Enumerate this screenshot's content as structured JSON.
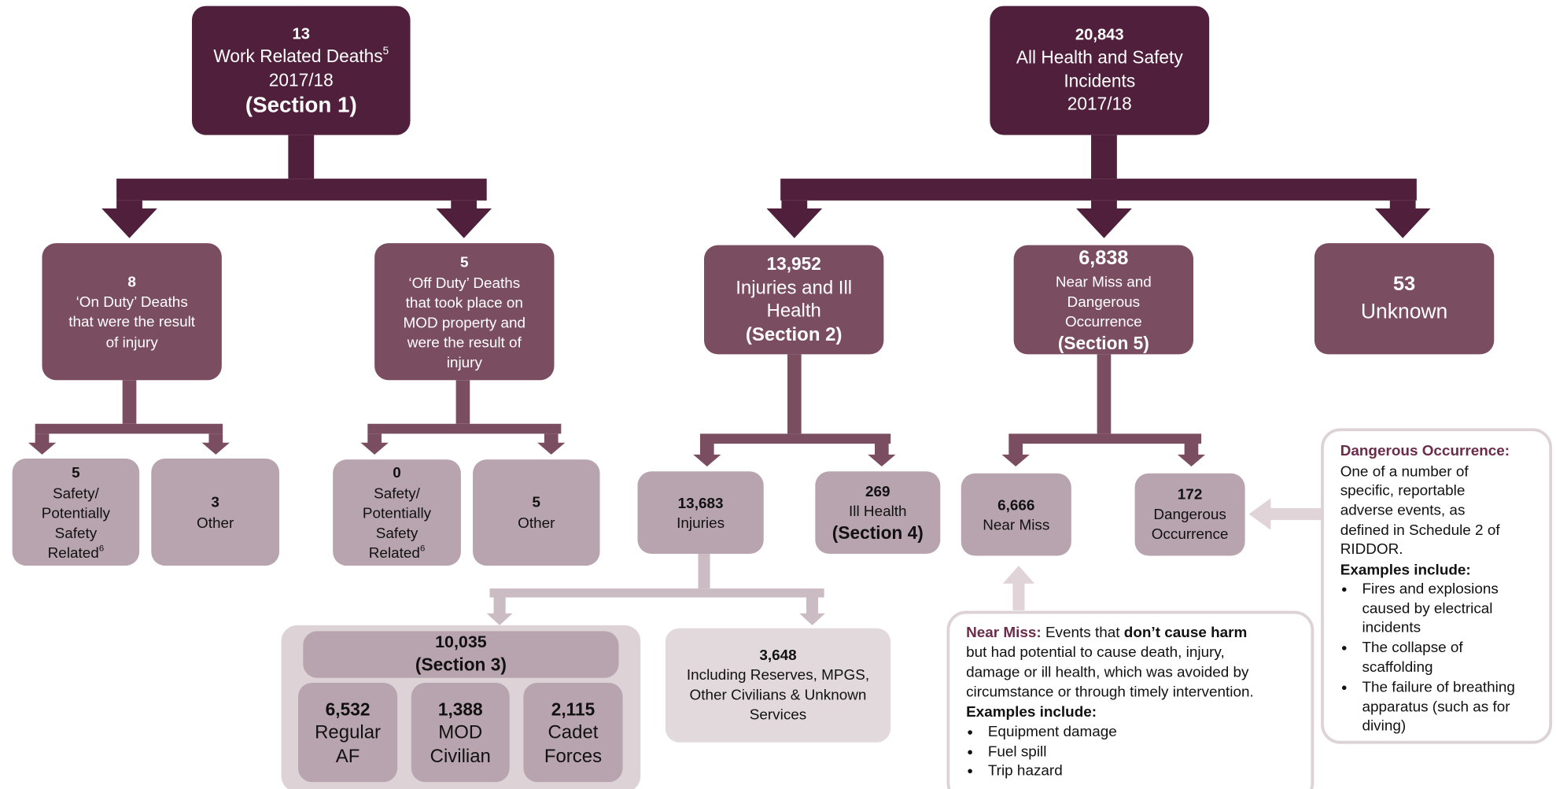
{
  "nodes": [
    {
      "lines": [
        "13",
        {
          "text": "Work Related Deaths",
          "sup": "5"
        },
        "2017/18",
        "(Section 1)"
      ]
    },
    {
      "lines": [
        "20,843",
        "All Health and Safety",
        "Incidents",
        "2017/18"
      ]
    },
    {
      "lines": [
        "8",
        "‘On Duty’ Deaths",
        "that were the result",
        "of injury"
      ]
    },
    {
      "lines": [
        "5",
        "‘Off Duty’ Deaths",
        "that took place on",
        "MOD property and",
        "were the result of",
        "injury"
      ]
    },
    {
      "lines": [
        "13,952",
        "Injuries and Ill",
        "Health",
        "(Section 2)"
      ]
    },
    {
      "lines": [
        "6,838",
        "Near Miss and",
        "Dangerous",
        "Occurrence",
        "(Section 5)"
      ]
    },
    {
      "lines": [
        "53",
        "Unknown"
      ]
    },
    {
      "lines": [
        "5",
        "Safety/",
        "Potentially",
        "Safety",
        {
          "text": "Related",
          "sup": "6"
        }
      ]
    },
    {
      "lines": [
        "3",
        "Other"
      ]
    },
    {
      "lines": [
        "0",
        "Safety/",
        "Potentially",
        "Safety",
        {
          "text": "Related",
          "sup": "6"
        }
      ]
    },
    {
      "lines": [
        "5",
        "Other"
      ]
    },
    {
      "lines": [
        "13,683",
        "Injuries"
      ]
    },
    {
      "lines": [
        "269",
        "Ill Health",
        "(Section 4)"
      ]
    },
    {
      "lines": [
        "6,666",
        "Near Miss"
      ]
    },
    {
      "lines": [
        "172",
        "Dangerous",
        "Occurrence"
      ]
    },
    {
      "lines": [
        "10,035",
        "(Section 3)"
      ]
    },
    {
      "lines": [
        "6,532",
        "Regular",
        "AF"
      ]
    },
    {
      "lines": [
        "1,388",
        "MOD",
        "Civilian"
      ]
    },
    {
      "lines": [
        "2,115",
        "Cadet",
        "Forces"
      ]
    },
    {
      "lines": [
        "3,648",
        "Including Reserves, MPGS,",
        "Other Civilians & Unknown",
        "Services"
      ]
    }
  ],
  "near_miss": {
    "paragraph": [
      [
        "Near Miss:",
        " Events that ",
        "don’t cause harm"
      ],
      [
        "but had potential to cause death, injury,"
      ],
      [
        "damage or ill health, which was avoided by"
      ],
      [
        "circumstance or through timely intervention."
      ]
    ],
    "examples_heading": "Examples include:",
    "examples": [
      [
        "Equipment damage"
      ],
      [
        "Fuel spill"
      ],
      [
        "Trip hazard"
      ]
    ]
  },
  "dangerous_occurrence": {
    "title": "Dangerous Occurrence:",
    "paragraph": [
      [
        "One of a number of"
      ],
      [
        "specific, reportable"
      ],
      [
        "adverse events, as"
      ],
      [
        "defined in Schedule 2 of"
      ],
      [
        "RIDDOR."
      ]
    ],
    "examples_heading": "Examples include:",
    "examples": [
      [
        "Fires and explosions",
        "caused by electrical",
        "incidents"
      ],
      [
        "The collapse of",
        "scaffolding"
      ],
      [
        "The failure of breathing",
        "apparatus (such as for",
        "diving)"
      ]
    ]
  }
}
